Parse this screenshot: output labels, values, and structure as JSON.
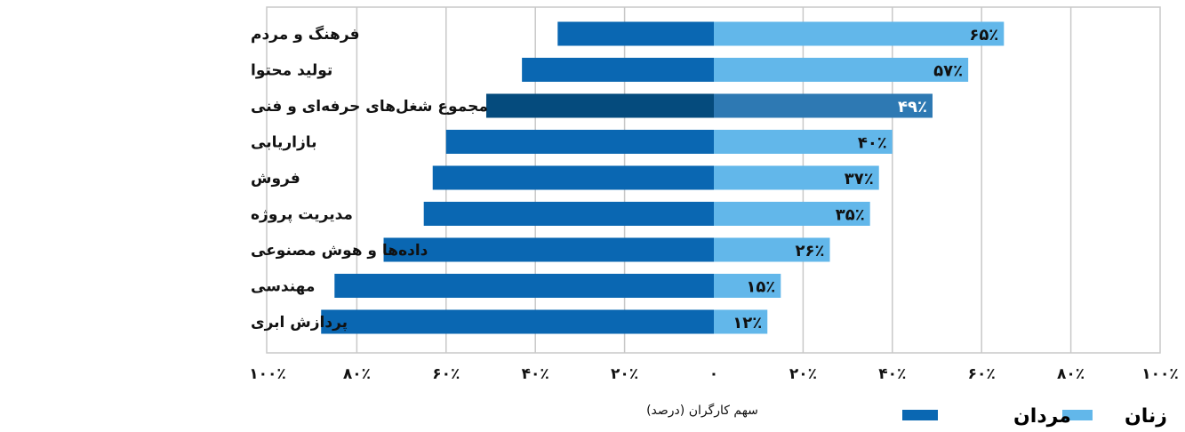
{
  "chart_data": {
    "type": "bar",
    "orientation": "horizontal",
    "layout": "diverging",
    "categories": [
      "فرهنگ و مردم",
      "تولید محتوا",
      "مجموع شغل‌های حرفه‌ای و فنی",
      "بازاریابی",
      "فروش",
      "مدیریت پروژه",
      "داده‌ها و هوش مصنوعی",
      "مهندسی",
      "پردازش ابری"
    ],
    "series": [
      {
        "name": "زنان",
        "side": "right",
        "color": "#62b7ea",
        "highlight_color": "#2e79b3",
        "values": [
          65,
          57,
          49,
          40,
          37,
          35,
          26,
          15,
          12
        ],
        "labels": [
          "۶۵٪",
          "۵۷٪",
          "۴۹٪",
          "۴۰٪",
          "۳۷٪",
          "۳۵٪",
          "۲۶٪",
          "۱۵٪",
          "۱۲٪"
        ]
      },
      {
        "name": "مردان",
        "side": "left",
        "color": "#0a67b2",
        "highlight_color": "#054b7d",
        "values": [
          35,
          43,
          51,
          60,
          63,
          65,
          74,
          85,
          88
        ]
      }
    ],
    "highlight_category_index": 2,
    "xlim": [
      -100,
      100
    ],
    "tick_values": [
      -100,
      -80,
      -60,
      -40,
      -20,
      0,
      20,
      40,
      60,
      80,
      100
    ],
    "tick_labels": [
      "۱۰۰٪",
      "۸۰٪",
      "۶۰٪",
      "۴۰٪",
      "۲۰٪",
      "۰",
      "۲۰٪",
      "۴۰٪",
      "۶۰٪",
      "۸۰٪",
      "۱۰۰٪"
    ],
    "xlabel": "سهم کارگران (درصد)",
    "grid": true,
    "legend_position": "bottom-right",
    "gridline_color": "#c8c8c8"
  }
}
